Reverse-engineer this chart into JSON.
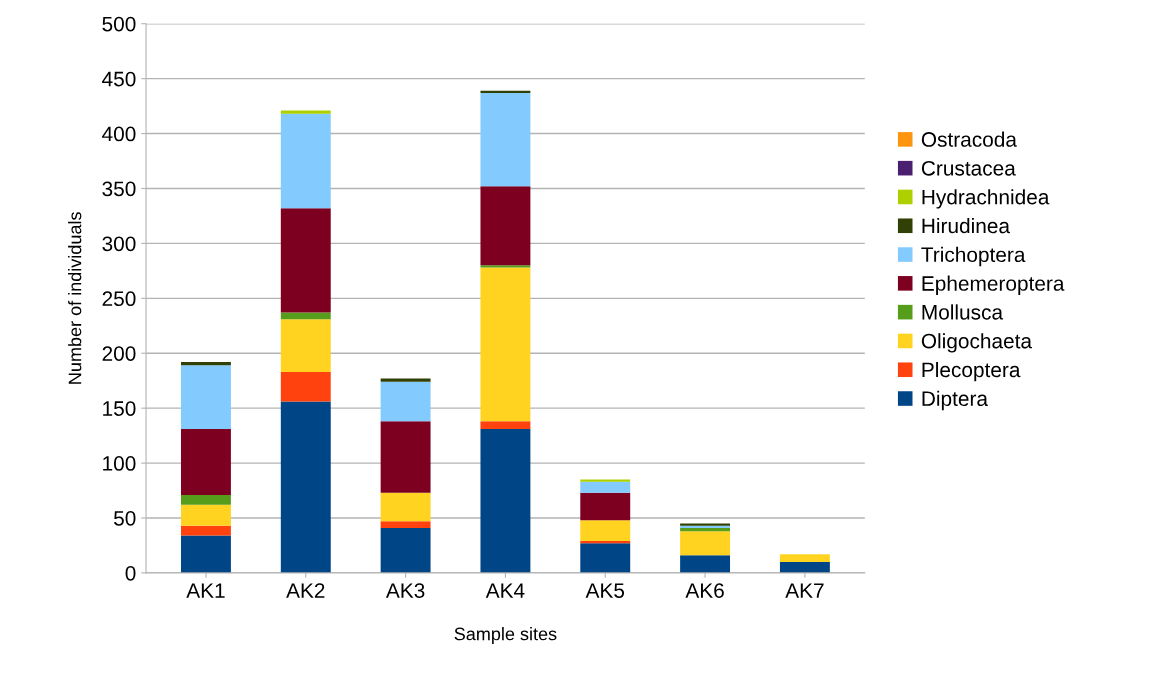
{
  "chart_data": {
    "type": "bar",
    "stacked": true,
    "xlabel": "Sample sites",
    "ylabel": "Number of individuals",
    "categories": [
      "AK1",
      "AK2",
      "AK3",
      "AK4",
      "AK5",
      "AK6",
      "AK7"
    ],
    "series": [
      {
        "name": "Diptera",
        "color": "#004586",
        "values": [
          34,
          156,
          41,
          131,
          27,
          16,
          10
        ]
      },
      {
        "name": "Plecoptera",
        "color": "#ff420e",
        "values": [
          9,
          27,
          6,
          7,
          2,
          0,
          0
        ]
      },
      {
        "name": "Oligochaeta",
        "color": "#ffd320",
        "values": [
          19,
          48,
          26,
          140,
          19,
          22,
          7
        ]
      },
      {
        "name": "Mollusca",
        "color": "#579d1c",
        "values": [
          9,
          6,
          0,
          2,
          0,
          3,
          0
        ]
      },
      {
        "name": "Ephemeroptera",
        "color": "#7e0021",
        "values": [
          60,
          95,
          65,
          72,
          25,
          0,
          0
        ]
      },
      {
        "name": "Trichoptera",
        "color": "#83caff",
        "values": [
          58,
          86,
          36,
          85,
          10,
          2,
          0
        ]
      },
      {
        "name": "Hirudinea",
        "color": "#314004",
        "values": [
          3,
          0,
          3,
          2,
          0,
          2,
          0
        ]
      },
      {
        "name": "Hydrachnidea",
        "color": "#aecf00",
        "values": [
          0,
          3,
          0,
          0,
          2,
          0,
          0
        ]
      },
      {
        "name": "Crustacea",
        "color": "#4b1f6f",
        "values": [
          0,
          0,
          0,
          0,
          0,
          0,
          0
        ]
      },
      {
        "name": "Ostracoda",
        "color": "#ff950e",
        "values": [
          0,
          0,
          0,
          0,
          0,
          0,
          0
        ]
      }
    ],
    "ylim": [
      0,
      500
    ],
    "yticks": [
      0,
      50,
      100,
      150,
      200,
      250,
      300,
      350,
      400,
      450,
      500
    ],
    "grid": "y",
    "legend": "right"
  }
}
